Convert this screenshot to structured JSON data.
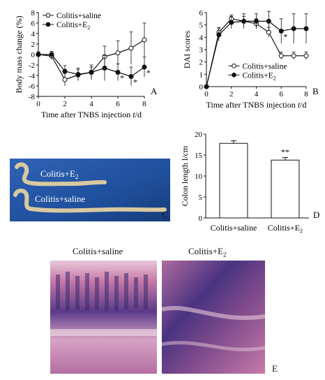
{
  "panel_letters": {
    "a": "A",
    "b": "B",
    "c": "C",
    "d": "D",
    "e": "E"
  },
  "photo_labels": {
    "top": "Colitis+E",
    "top_sub": "2",
    "bottom": "Colitis+saline"
  },
  "histology_titles": {
    "left": "Colitis+saline",
    "right": "Colitis+E",
    "right_sub": "2"
  },
  "colors": {
    "photo_bg": "#1f4f9c",
    "tissue_dark": "#3c2a6e",
    "tissue_mid": "#7d4a8c",
    "tissue_pink": "#c77aa8",
    "tissue_light": "#e8c8d8"
  },
  "chart_data": [
    {
      "type": "line",
      "panel": "A",
      "ylabel": "Body mass change (%)",
      "xlabel": "Time after TNBS injection t/d",
      "xlim": [
        0,
        8
      ],
      "ylim": [
        -8,
        8
      ],
      "xticks": [
        0,
        2,
        4,
        6,
        8
      ],
      "yticks": [
        8,
        6,
        4,
        2,
        0,
        -2,
        -4,
        -6,
        -8
      ],
      "legend_position": "top-left",
      "series": [
        {
          "name": "Colitis+saline",
          "marker": "open",
          "x": [
            0,
            1,
            2,
            3,
            4,
            5,
            6,
            7,
            8
          ],
          "y": [
            0,
            -0.3,
            -4.8,
            -3.9,
            -3.4,
            -0.4,
            0.3,
            1.2,
            2.8
          ],
          "err": [
            0.5,
            0.7,
            1.2,
            1.0,
            1.4,
            2.0,
            2.3,
            3.1,
            3.2
          ]
        },
        {
          "name": "Colitis+E2",
          "marker": "filled",
          "x": [
            0,
            1,
            2,
            3,
            4,
            5,
            6,
            7,
            8
          ],
          "y": [
            0,
            0,
            -3.2,
            -3.8,
            -3.4,
            -2.6,
            -3.4,
            -4.2,
            -2.4
          ],
          "err": [
            0.5,
            0.6,
            1.1,
            1.2,
            1.0,
            2.4,
            1.6,
            1.8,
            1.9
          ]
        }
      ],
      "annotations": [
        {
          "x": 6,
          "text": "*"
        },
        {
          "x": 7,
          "text": "*"
        },
        {
          "x": 8,
          "text": "*"
        }
      ]
    },
    {
      "type": "line",
      "panel": "B",
      "ylabel": "DAI scores",
      "xlabel": "Time after TNBS injection t/d",
      "xlim": [
        0,
        8
      ],
      "ylim": [
        0,
        6
      ],
      "xticks": [
        0,
        2,
        4,
        6,
        8
      ],
      "yticks": [
        0,
        1,
        2,
        3,
        4,
        5,
        6
      ],
      "legend_position": "bottom-right",
      "series": [
        {
          "name": "Colitis+saline",
          "marker": "open",
          "x": [
            0,
            1,
            2,
            3,
            4,
            5,
            6,
            7,
            8
          ],
          "y": [
            0,
            4.4,
            5.5,
            5.3,
            5.1,
            4.4,
            2.5,
            2.5,
            2.5
          ],
          "err": [
            0,
            0.4,
            0.3,
            0.4,
            0.4,
            0.4,
            0.3,
            0.3,
            0.3
          ]
        },
        {
          "name": "Colitis+E2",
          "marker": "filled",
          "x": [
            0,
            1,
            2,
            3,
            4,
            5,
            6,
            7,
            8
          ],
          "y": [
            0,
            4.2,
            5.2,
            5.3,
            5.3,
            5.3,
            4.5,
            4.7,
            4.7
          ],
          "err": [
            0,
            0.5,
            0.5,
            0.6,
            0.6,
            0.8,
            1.0,
            1.2,
            1.2
          ]
        }
      ],
      "annotations": [
        {
          "x": 6,
          "text": "*"
        }
      ]
    },
    {
      "type": "bar",
      "panel": "D",
      "ylabel": "Colon length l/cm",
      "categories": [
        "Colitis+saline",
        "Colitis+E2"
      ],
      "values": [
        17.8,
        13.8
      ],
      "err": [
        0.6,
        0.6
      ],
      "ylim": [
        0,
        20
      ],
      "yticks": [
        0,
        5,
        10,
        15,
        20
      ],
      "annotations": [
        {
          "category": "Colitis+E2",
          "text": "**"
        }
      ]
    }
  ]
}
